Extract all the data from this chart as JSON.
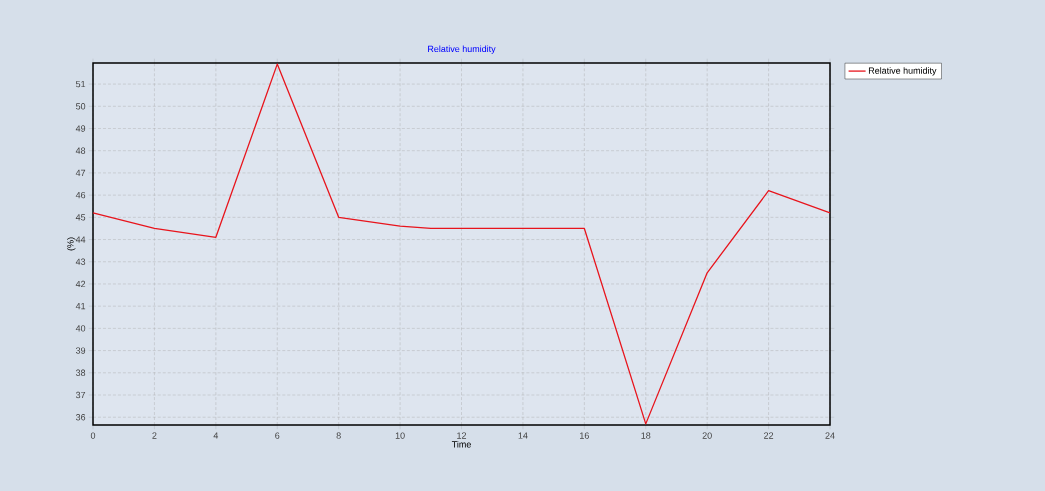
{
  "chart_data": {
    "type": "line",
    "title": "Relative humidity",
    "xlabel": "Time",
    "ylabel": "(%)",
    "x": [
      0,
      2,
      4,
      6,
      8,
      10,
      11,
      16,
      18,
      20,
      22,
      24
    ],
    "series": [
      {
        "name": "Relative humidity",
        "color": "#e8141c",
        "values": [
          45.2,
          44.5,
          44.1,
          51.9,
          45.0,
          44.6,
          44.5,
          44.5,
          35.7,
          42.5,
          46.2,
          45.2
        ]
      }
    ],
    "xlim": [
      0,
      24
    ],
    "xticks": [
      0,
      2,
      4,
      6,
      8,
      10,
      12,
      14,
      16,
      18,
      20,
      22,
      24
    ],
    "ylim": [
      35.65,
      51.95
    ],
    "yticks": [
      36,
      37,
      38,
      39,
      40,
      41,
      42,
      43,
      44,
      45,
      46,
      47,
      48,
      49,
      50,
      51
    ],
    "grid": true,
    "legend": "top right",
    "line_style": "solid",
    "marker": "none"
  }
}
